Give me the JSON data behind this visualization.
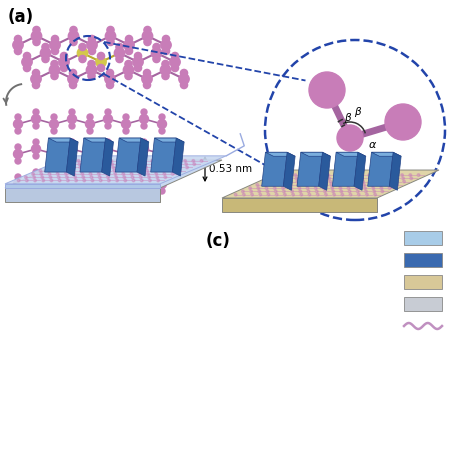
{
  "label_a": "(a)",
  "label_c": "(c)",
  "bg_color": "#ffffff",
  "atom_color_purple": "#c87db8",
  "atom_color_yellow": "#d4c84a",
  "bond_color": "#a565a0",
  "bond_color_yellow": "#b8a830",
  "arrow_color": "#707070",
  "dashed_circle_color": "#2244aa",
  "dimension_text": "0.53 nm",
  "electrode_color_face": "#4a7fbc",
  "electrode_color_top": "#7aaedd",
  "electrode_color_side": "#2a5a9c",
  "substrate_color_left": "#ccd8ee",
  "substrate_color_right": "#e0d5a8",
  "frame_color_left": "#b8c4d8",
  "frame_color_right": "#c8bc90",
  "legend_colors": [
    "#a8cce8",
    "#3a6ab0",
    "#d8c898",
    "#c8ccd4"
  ],
  "label_fontsize": 12,
  "annotation_fontsize": 8
}
